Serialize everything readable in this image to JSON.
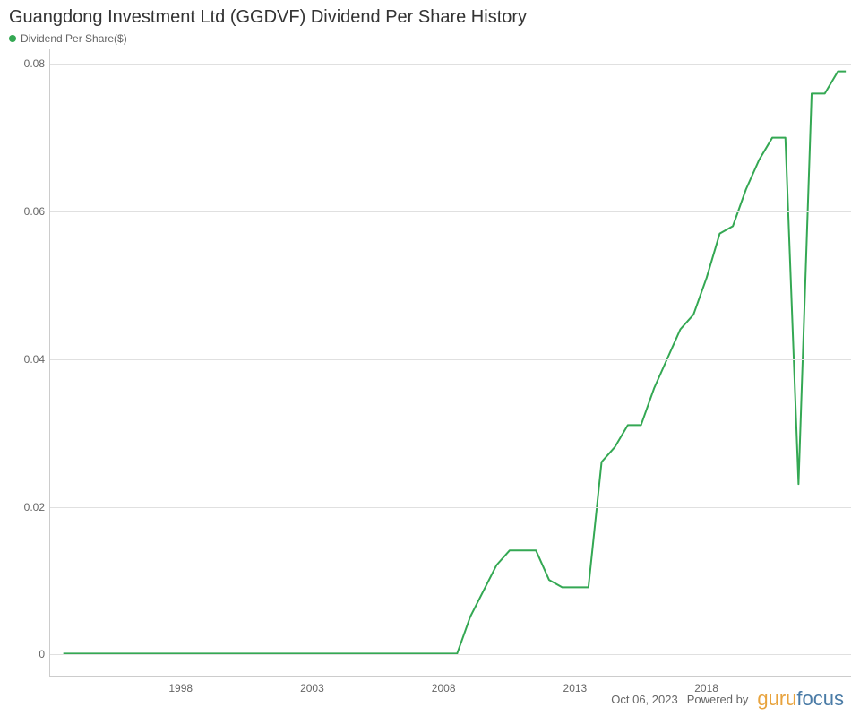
{
  "title": "Guangdong Investment Ltd (GGDVF) Dividend Per Share History",
  "legend": {
    "label": "Dividend Per Share($)",
    "color": "#34a853"
  },
  "chart": {
    "type": "line",
    "line_color": "#34a853",
    "line_width": 2,
    "background_color": "#ffffff",
    "grid_color": "#e0e0e0",
    "axis_color": "#cccccc",
    "tick_font_size": 12,
    "tick_color": "#666666",
    "xlim": [
      1993,
      2023.5
    ],
    "ylim": [
      -0.003,
      0.082
    ],
    "yticks": [
      0,
      0.02,
      0.04,
      0.06,
      0.08
    ],
    "xticks": [
      1998,
      2003,
      2008,
      2013,
      2018
    ],
    "data": [
      {
        "x": 1993.5,
        "y": 0.0
      },
      {
        "x": 2008.0,
        "y": 0.0
      },
      {
        "x": 2008.5,
        "y": 0.0
      },
      {
        "x": 2009.0,
        "y": 0.005
      },
      {
        "x": 2010.0,
        "y": 0.012
      },
      {
        "x": 2010.5,
        "y": 0.014
      },
      {
        "x": 2011.5,
        "y": 0.014
      },
      {
        "x": 2012.0,
        "y": 0.01
      },
      {
        "x": 2012.5,
        "y": 0.009
      },
      {
        "x": 2013.5,
        "y": 0.009
      },
      {
        "x": 2014.0,
        "y": 0.026
      },
      {
        "x": 2014.5,
        "y": 0.028
      },
      {
        "x": 2015.0,
        "y": 0.031
      },
      {
        "x": 2015.5,
        "y": 0.031
      },
      {
        "x": 2016.0,
        "y": 0.036
      },
      {
        "x": 2016.5,
        "y": 0.04
      },
      {
        "x": 2017.0,
        "y": 0.044
      },
      {
        "x": 2017.5,
        "y": 0.046
      },
      {
        "x": 2018.0,
        "y": 0.051
      },
      {
        "x": 2018.5,
        "y": 0.057
      },
      {
        "x": 2019.0,
        "y": 0.058
      },
      {
        "x": 2019.5,
        "y": 0.063
      },
      {
        "x": 2020.0,
        "y": 0.067
      },
      {
        "x": 2020.5,
        "y": 0.07
      },
      {
        "x": 2021.0,
        "y": 0.07
      },
      {
        "x": 2021.5,
        "y": 0.023
      },
      {
        "x": 2022.0,
        "y": 0.076
      },
      {
        "x": 2022.5,
        "y": 0.076
      },
      {
        "x": 2023.0,
        "y": 0.079
      },
      {
        "x": 2023.3,
        "y": 0.079
      }
    ]
  },
  "footer": {
    "date": "Oct 06, 2023",
    "powered_text": "Powered by",
    "brand_g": "guru",
    "brand_rest": "focus"
  }
}
